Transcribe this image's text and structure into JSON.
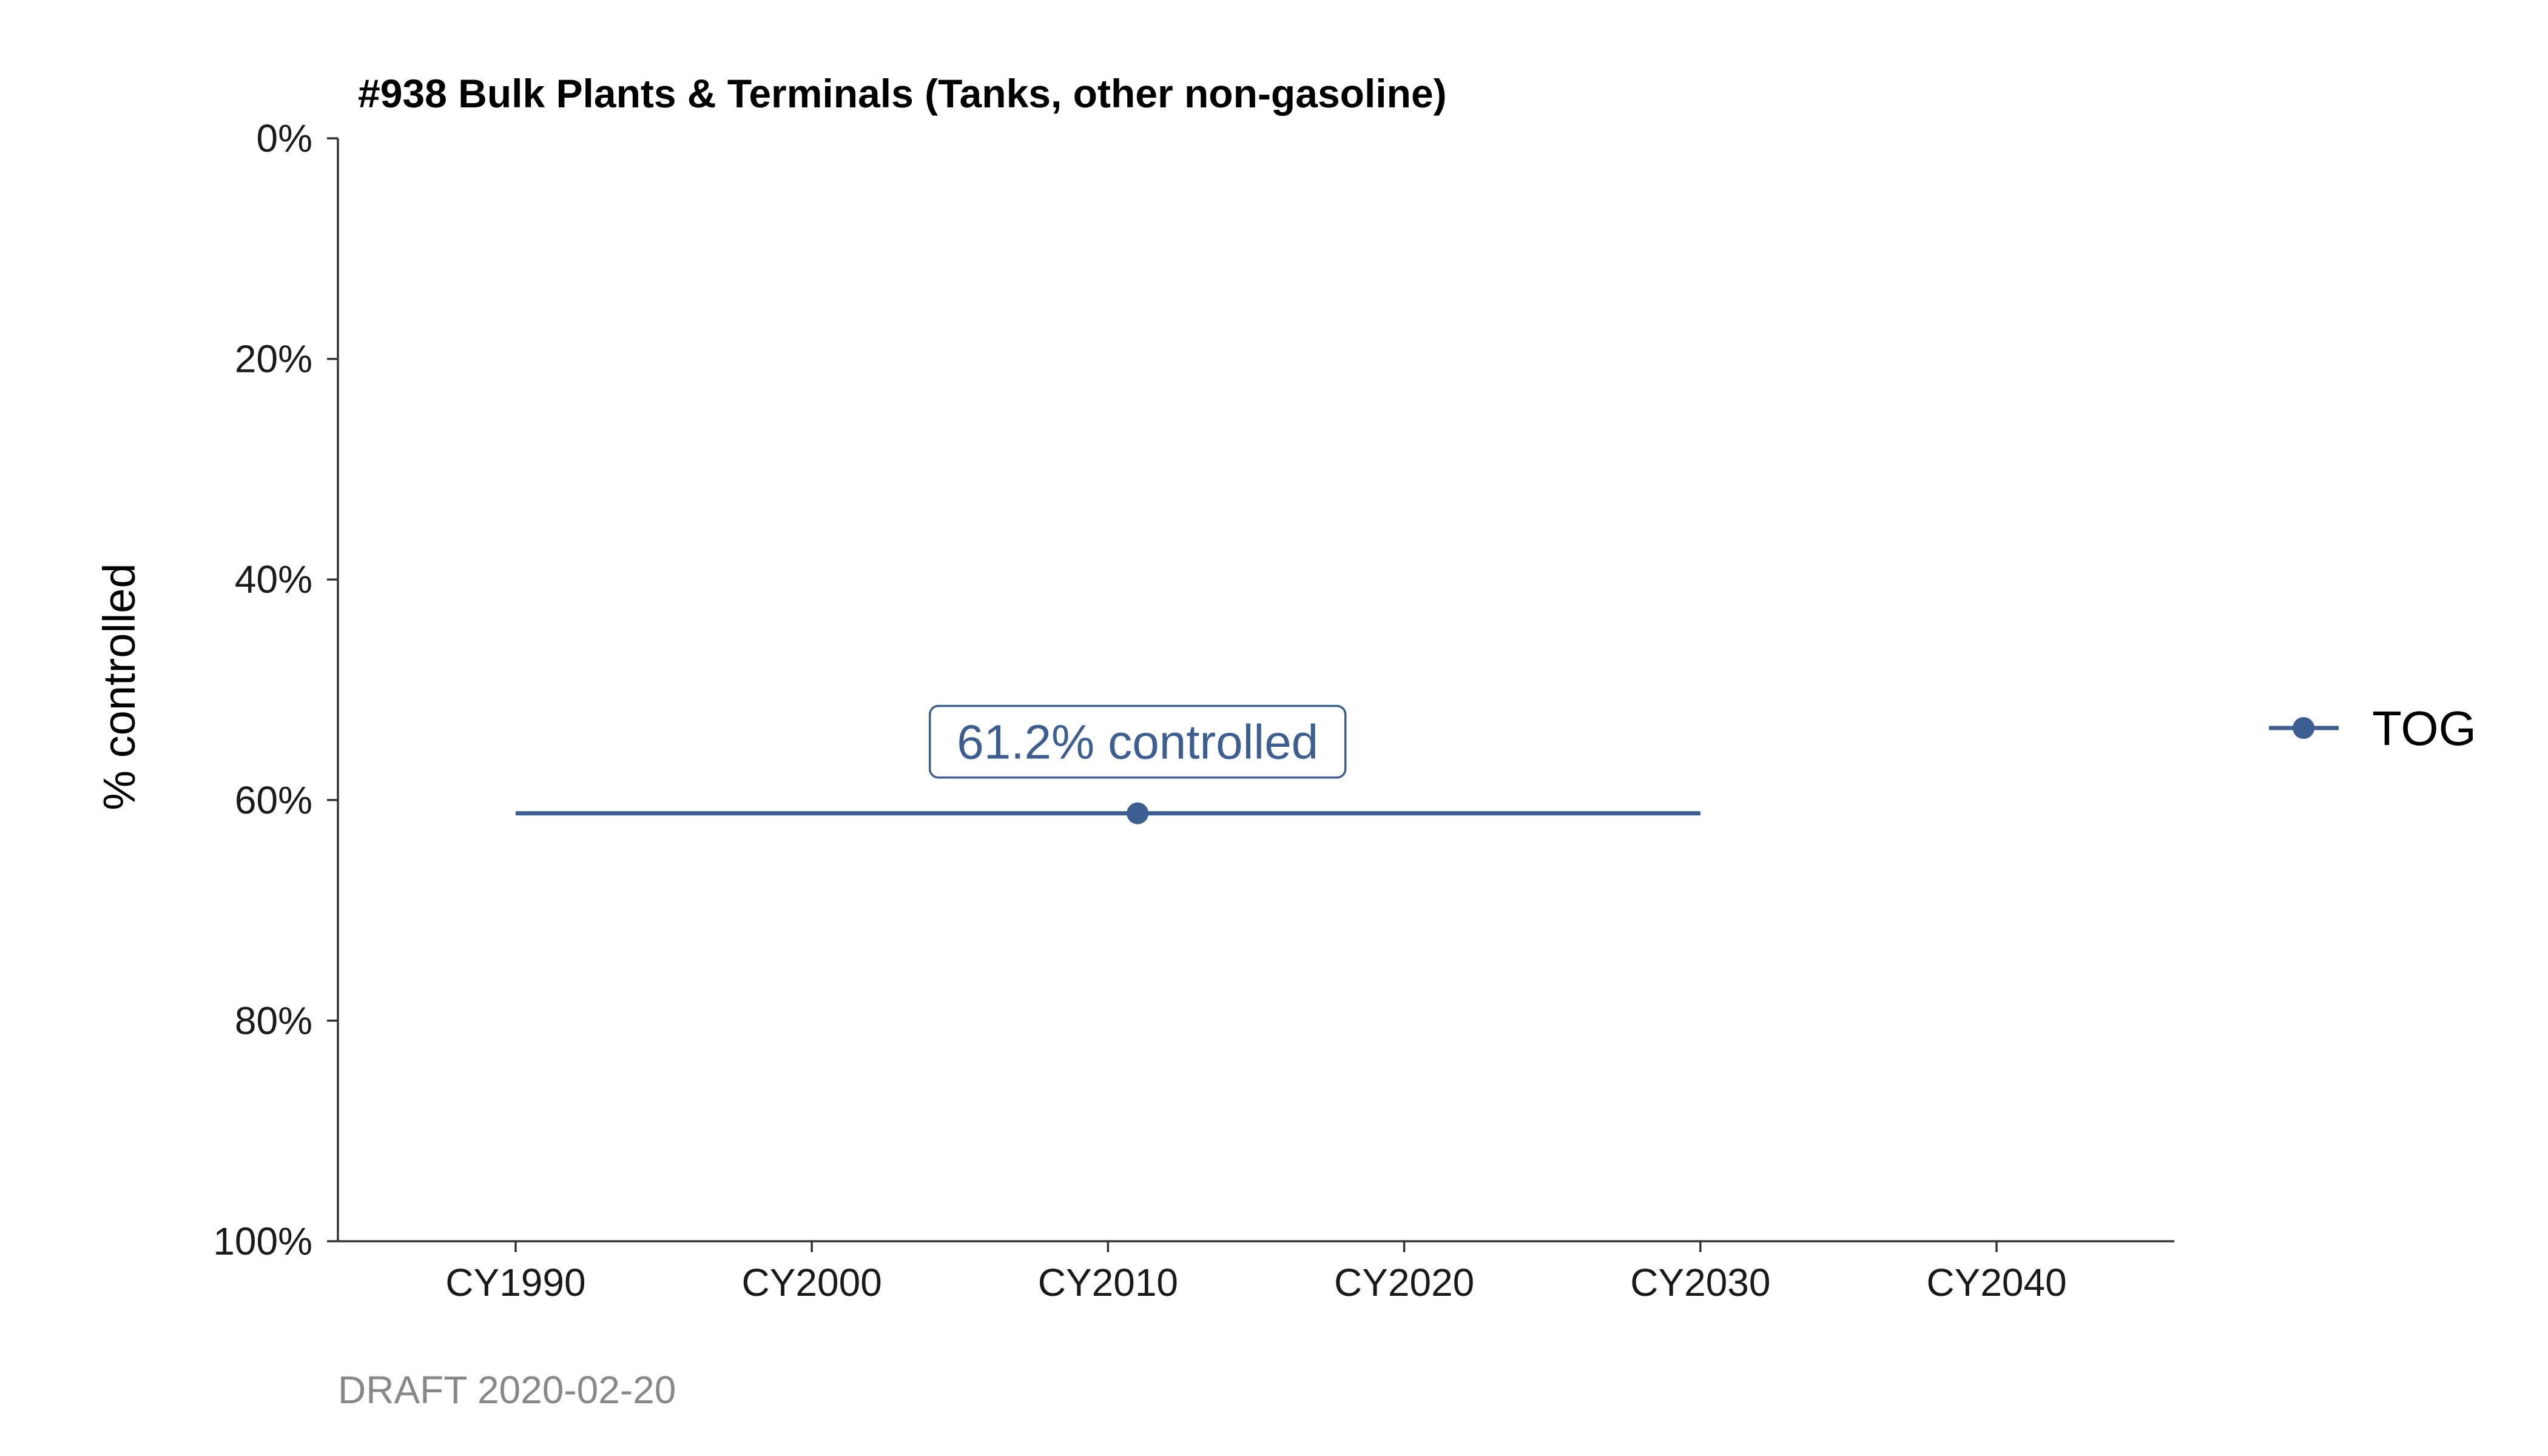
{
  "chart_data": {
    "type": "line",
    "title": "#938 Bulk Plants & Terminals (Tanks, other non-gasoline)",
    "ylabel": "% controlled",
    "xlabel": "",
    "x_ticks": [
      1990,
      2000,
      2010,
      2020,
      2030,
      2040
    ],
    "x_tick_labels": [
      "CY1990",
      "CY2000",
      "CY2010",
      "CY2020",
      "CY2030",
      "CY2040"
    ],
    "xlim": [
      1984,
      2046
    ],
    "y_ticks": [
      0,
      20,
      40,
      60,
      80,
      100
    ],
    "y_tick_labels": [
      "0%",
      "20%",
      "40%",
      "60%",
      "80%",
      "100%"
    ],
    "ylim": [
      0,
      100
    ],
    "y_reversed": true,
    "grid": false,
    "legend_position": "right",
    "series": [
      {
        "name": "TOG",
        "color": "#3c5e92",
        "x": [
          1990,
          2030
        ],
        "y": [
          61.2,
          61.2
        ],
        "marker_points": [
          {
            "x": 2011,
            "y": 61.2
          }
        ]
      }
    ],
    "annotations": [
      {
        "text": "61.2% controlled",
        "x": 2011,
        "y": 61.2
      }
    ],
    "caption": "DRAFT 2020-02-20"
  }
}
